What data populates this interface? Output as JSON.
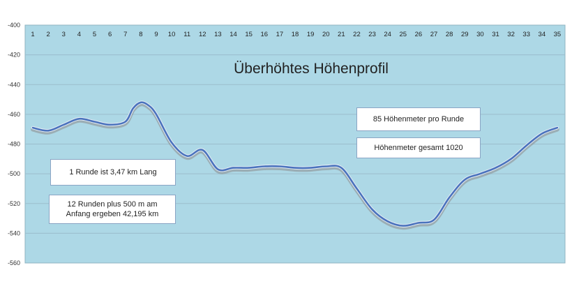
{
  "chart_data": {
    "type": "line",
    "title": "Überhöhtes Höhenprofil",
    "xlabel": "",
    "ylabel": "",
    "x_categories": [
      "1",
      "2",
      "3",
      "4",
      "5",
      "6",
      "7",
      "8",
      "9",
      "10",
      "11",
      "12",
      "13",
      "14",
      "15",
      "16",
      "17",
      "18",
      "19",
      "20",
      "21",
      "22",
      "23",
      "24",
      "25",
      "26",
      "27",
      "28",
      "29",
      "30",
      "31",
      "32",
      "33",
      "34",
      "35"
    ],
    "x_axis_position": "top",
    "y_ticks": [
      "-400",
      "-420",
      "-440",
      "-460",
      "-480",
      "-500",
      "-520",
      "-540",
      "-560"
    ],
    "ylim": [
      -560,
      -400
    ],
    "grid": true,
    "colors": {
      "plot_background": "#add8e6",
      "line": "#4a73bd",
      "shadow": "#8c8c8c",
      "grid": "#9bbdcc"
    },
    "series": [
      {
        "x": [
          1,
          2,
          3,
          4,
          5,
          6,
          7,
          7.5,
          8,
          8.5,
          9,
          10,
          11,
          12,
          13,
          14,
          15,
          16,
          17,
          18,
          19,
          20,
          21,
          22,
          23,
          24,
          25,
          26,
          27,
          28,
          29,
          30,
          31,
          32,
          33,
          34,
          35
        ],
        "values": [
          -469,
          -471,
          -467,
          -463,
          -465,
          -467,
          -465,
          -456,
          -452,
          -454,
          -460,
          -479,
          -488,
          -484,
          -497,
          -496,
          -496,
          -495,
          -495,
          -496,
          -496,
          -495,
          -496,
          -510,
          -524,
          -532,
          -535,
          -533,
          -531,
          -516,
          -504,
          -500,
          -496,
          -490,
          -481,
          -473,
          -469
        ]
      }
    ],
    "annotations": [
      "1 Runde ist 3,47 km Lang",
      "12 Runden  plus 500 m am Anfang ergeben 42,195 km",
      "85 Höhenmeter pro Runde",
      "Höhenmeter gesamt  1020"
    ]
  }
}
